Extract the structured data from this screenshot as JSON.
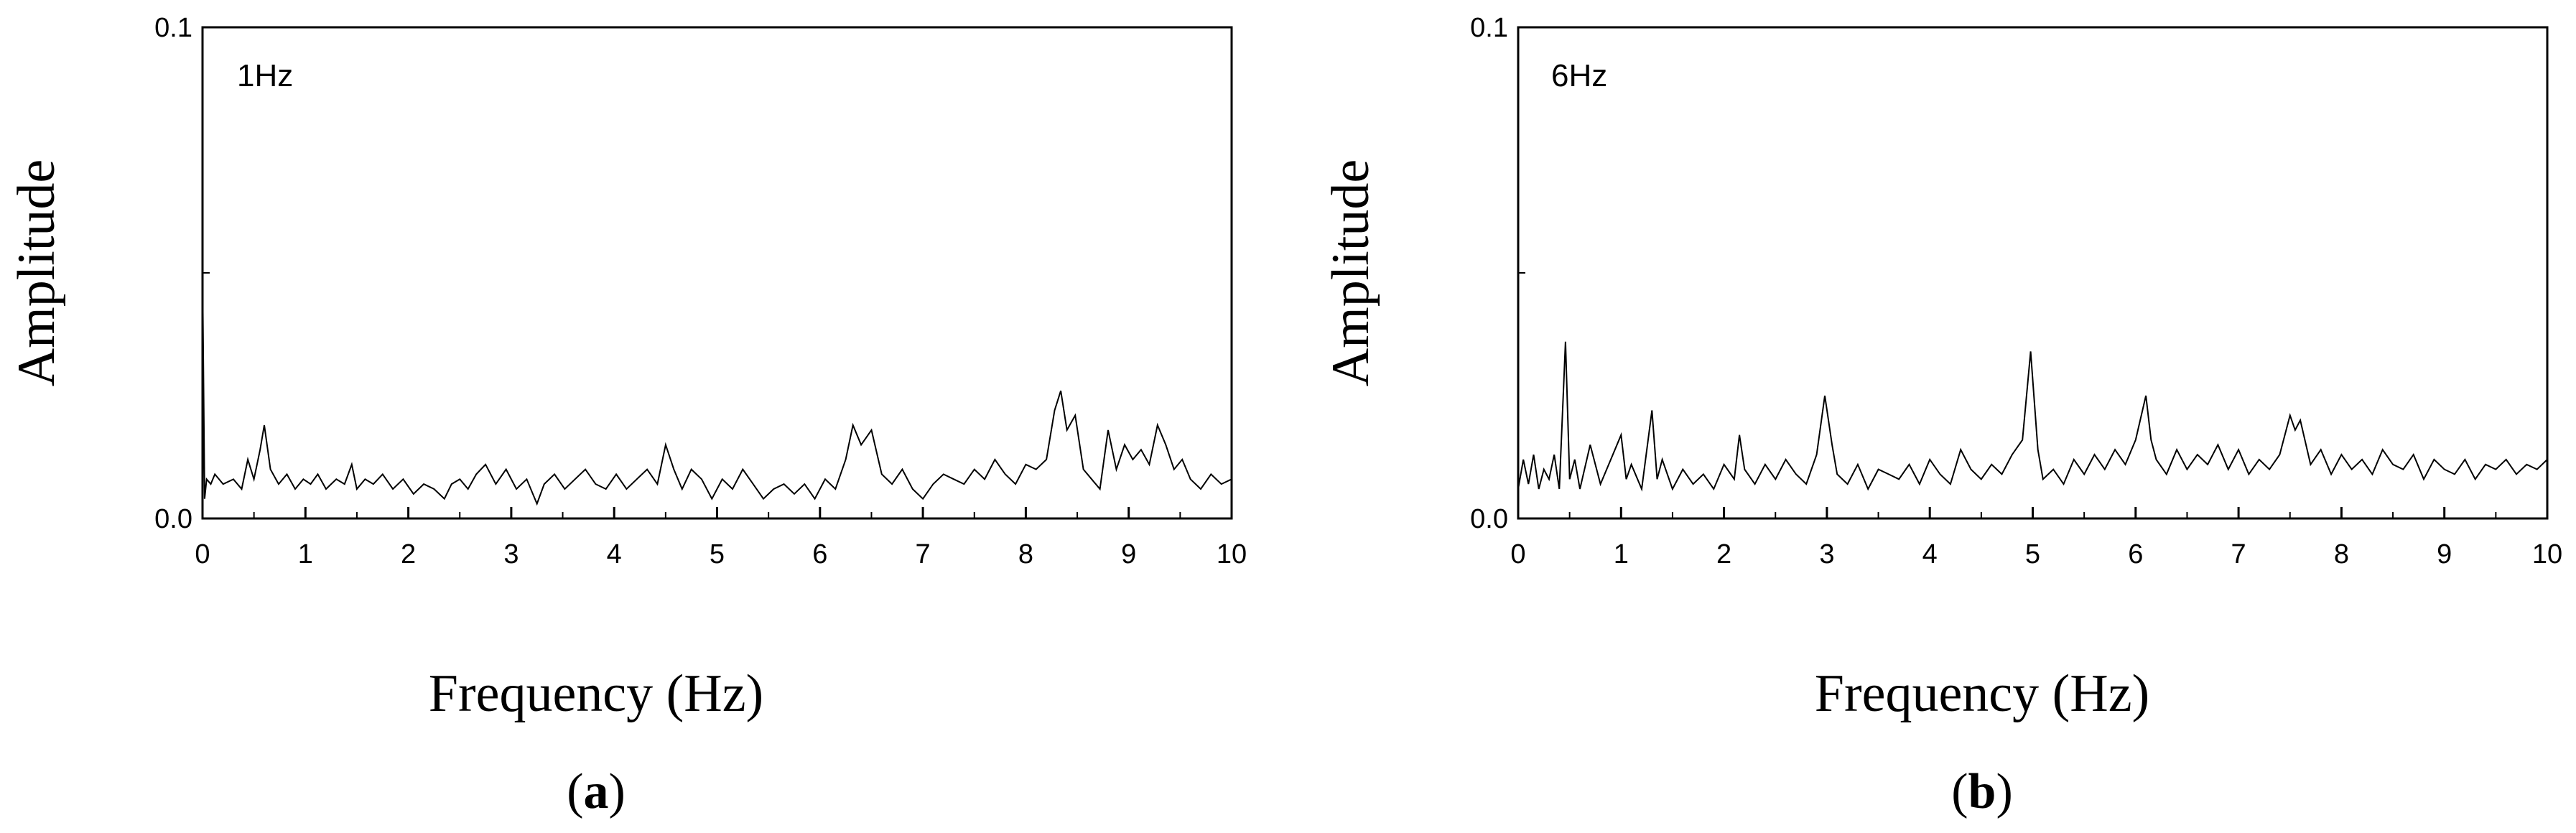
{
  "chart_data": [
    {
      "type": "line",
      "panel_letter": "a",
      "annotation": "1Hz",
      "title": "",
      "xlabel": "Frequency (Hz)",
      "ylabel": "Amplitude",
      "xlim": [
        0,
        10
      ],
      "ylim": [
        0.0,
        0.1
      ],
      "xticks": [
        "0",
        "1",
        "2",
        "3",
        "4",
        "5",
        "6",
        "7",
        "8",
        "9",
        "10"
      ],
      "yticks": [
        "0.0",
        "0.1"
      ],
      "y_minor_tick": 0.05,
      "grid": false,
      "legend": "none",
      "series": [
        {
          "color": "#000000",
          "x": [
            0,
            0.02,
            0.04,
            0.08,
            0.12,
            0.2,
            0.3,
            0.38,
            0.44,
            0.5,
            0.56,
            0.6,
            0.66,
            0.74,
            0.82,
            0.9,
            0.98,
            1.05,
            1.12,
            1.2,
            1.3,
            1.38,
            1.45,
            1.5,
            1.58,
            1.66,
            1.75,
            1.85,
            1.95,
            2.05,
            2.15,
            2.25,
            2.35,
            2.42,
            2.5,
            2.58,
            2.66,
            2.75,
            2.85,
            2.95,
            3.05,
            3.15,
            3.25,
            3.32,
            3.42,
            3.52,
            3.62,
            3.72,
            3.82,
            3.92,
            4.02,
            4.12,
            4.22,
            4.32,
            4.42,
            4.5,
            4.58,
            4.66,
            4.75,
            4.85,
            4.95,
            5.05,
            5.15,
            5.25,
            5.35,
            5.45,
            5.55,
            5.65,
            5.75,
            5.85,
            5.95,
            6.05,
            6.15,
            6.25,
            6.32,
            6.4,
            6.5,
            6.6,
            6.7,
            6.8,
            6.9,
            7.0,
            7.1,
            7.2,
            7.3,
            7.4,
            7.5,
            7.6,
            7.7,
            7.8,
            7.9,
            8.0,
            8.1,
            8.2,
            8.28,
            8.34,
            8.4,
            8.48,
            8.56,
            8.64,
            8.72,
            8.8,
            8.88,
            8.96,
            9.04,
            9.12,
            9.2,
            9.28,
            9.36,
            9.44,
            9.52,
            9.6,
            9.7,
            9.8,
            9.9,
            10.0
          ],
          "y": [
            0.05,
            0.004,
            0.008,
            0.007,
            0.009,
            0.007,
            0.008,
            0.006,
            0.012,
            0.008,
            0.014,
            0.019,
            0.01,
            0.007,
            0.009,
            0.006,
            0.008,
            0.007,
            0.009,
            0.006,
            0.008,
            0.007,
            0.011,
            0.006,
            0.008,
            0.007,
            0.009,
            0.006,
            0.008,
            0.005,
            0.007,
            0.006,
            0.004,
            0.007,
            0.008,
            0.006,
            0.009,
            0.011,
            0.007,
            0.01,
            0.006,
            0.008,
            0.003,
            0.007,
            0.009,
            0.006,
            0.008,
            0.01,
            0.007,
            0.006,
            0.009,
            0.006,
            0.008,
            0.01,
            0.007,
            0.015,
            0.01,
            0.006,
            0.01,
            0.008,
            0.004,
            0.008,
            0.006,
            0.01,
            0.007,
            0.004,
            0.006,
            0.007,
            0.005,
            0.007,
            0.004,
            0.008,
            0.006,
            0.012,
            0.019,
            0.015,
            0.018,
            0.009,
            0.007,
            0.01,
            0.006,
            0.004,
            0.007,
            0.009,
            0.008,
            0.007,
            0.01,
            0.008,
            0.012,
            0.009,
            0.007,
            0.011,
            0.01,
            0.012,
            0.022,
            0.026,
            0.018,
            0.021,
            0.01,
            0.008,
            0.006,
            0.018,
            0.01,
            0.015,
            0.012,
            0.014,
            0.011,
            0.019,
            0.015,
            0.01,
            0.012,
            0.008,
            0.006,
            0.009,
            0.007,
            0.008
          ]
        }
      ]
    },
    {
      "type": "line",
      "panel_letter": "b",
      "annotation": "6Hz",
      "title": "",
      "xlabel": "Frequency (Hz)",
      "ylabel": "Amplitude",
      "xlim": [
        0,
        10
      ],
      "ylim": [
        0.0,
        0.1
      ],
      "xticks": [
        "0",
        "1",
        "2",
        "3",
        "4",
        "5",
        "6",
        "7",
        "8",
        "9",
        "10"
      ],
      "yticks": [
        "0.0",
        "0.1"
      ],
      "y_minor_tick": 0.05,
      "grid": false,
      "legend": "none",
      "series": [
        {
          "color": "#000000",
          "x": [
            0,
            0.05,
            0.1,
            0.15,
            0.2,
            0.25,
            0.3,
            0.35,
            0.4,
            0.46,
            0.5,
            0.55,
            0.6,
            0.7,
            0.8,
            0.9,
            1.0,
            1.05,
            1.1,
            1.2,
            1.3,
            1.35,
            1.4,
            1.5,
            1.6,
            1.7,
            1.8,
            1.9,
            2.0,
            2.1,
            2.15,
            2.2,
            2.3,
            2.4,
            2.5,
            2.6,
            2.7,
            2.8,
            2.9,
            2.98,
            3.05,
            3.1,
            3.2,
            3.3,
            3.4,
            3.5,
            3.6,
            3.7,
            3.8,
            3.9,
            4.0,
            4.1,
            4.2,
            4.3,
            4.4,
            4.5,
            4.6,
            4.7,
            4.8,
            4.9,
            4.98,
            5.05,
            5.1,
            5.2,
            5.3,
            5.4,
            5.5,
            5.6,
            5.7,
            5.8,
            5.9,
            6.0,
            6.1,
            6.15,
            6.2,
            6.3,
            6.4,
            6.5,
            6.6,
            6.7,
            6.8,
            6.9,
            7.0,
            7.1,
            7.2,
            7.3,
            7.4,
            7.5,
            7.55,
            7.6,
            7.7,
            7.8,
            7.9,
            8.0,
            8.1,
            8.2,
            8.3,
            8.4,
            8.5,
            8.6,
            8.7,
            8.8,
            8.9,
            9.0,
            9.1,
            9.2,
            9.3,
            9.4,
            9.5,
            9.6,
            9.7,
            9.8,
            9.9,
            10.0
          ],
          "y": [
            0.006,
            0.012,
            0.007,
            0.013,
            0.006,
            0.01,
            0.008,
            0.013,
            0.006,
            0.036,
            0.008,
            0.012,
            0.006,
            0.015,
            0.007,
            0.012,
            0.017,
            0.008,
            0.011,
            0.006,
            0.022,
            0.008,
            0.012,
            0.006,
            0.01,
            0.007,
            0.009,
            0.006,
            0.011,
            0.008,
            0.017,
            0.01,
            0.007,
            0.011,
            0.008,
            0.012,
            0.009,
            0.007,
            0.013,
            0.025,
            0.015,
            0.009,
            0.007,
            0.011,
            0.006,
            0.01,
            0.009,
            0.008,
            0.011,
            0.007,
            0.012,
            0.009,
            0.007,
            0.014,
            0.01,
            0.008,
            0.011,
            0.009,
            0.013,
            0.016,
            0.034,
            0.014,
            0.008,
            0.01,
            0.007,
            0.012,
            0.009,
            0.013,
            0.01,
            0.014,
            0.011,
            0.016,
            0.025,
            0.016,
            0.012,
            0.009,
            0.014,
            0.01,
            0.013,
            0.011,
            0.015,
            0.01,
            0.014,
            0.009,
            0.012,
            0.01,
            0.013,
            0.021,
            0.018,
            0.02,
            0.011,
            0.014,
            0.009,
            0.013,
            0.01,
            0.012,
            0.009,
            0.014,
            0.011,
            0.01,
            0.013,
            0.008,
            0.012,
            0.01,
            0.009,
            0.012,
            0.008,
            0.011,
            0.01,
            0.012,
            0.009,
            0.011,
            0.01,
            0.012
          ]
        }
      ]
    }
  ]
}
